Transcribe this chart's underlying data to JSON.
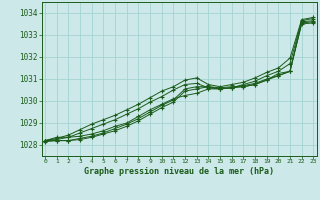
{
  "title": "Graphe pression niveau de la mer (hPa)",
  "bg_color": "#cce8e8",
  "line_color": "#1a5c1a",
  "xlim": [
    -0.3,
    23.3
  ],
  "ylim": [
    1027.5,
    1034.5
  ],
  "xticks": [
    0,
    1,
    2,
    3,
    4,
    5,
    6,
    7,
    8,
    9,
    10,
    11,
    12,
    13,
    14,
    15,
    16,
    17,
    18,
    19,
    20,
    21,
    22,
    23
  ],
  "yticks": [
    1028,
    1029,
    1030,
    1031,
    1032,
    1033,
    1034
  ],
  "series": [
    [
      1028.15,
      1028.2,
      1028.2,
      1028.25,
      1028.35,
      1028.5,
      1028.65,
      1028.85,
      1029.1,
      1029.4,
      1029.7,
      1029.95,
      1030.45,
      1030.55,
      1030.65,
      1030.6,
      1030.65,
      1030.65,
      1030.75,
      1030.95,
      1031.15,
      1031.35,
      1033.55,
      1033.6
    ],
    [
      1028.2,
      1028.2,
      1028.2,
      1028.3,
      1028.4,
      1028.55,
      1028.75,
      1028.95,
      1029.2,
      1029.5,
      1029.8,
      1030.05,
      1030.55,
      1030.65,
      1030.65,
      1030.55,
      1030.6,
      1030.7,
      1030.8,
      1031.0,
      1031.15,
      1031.35,
      1033.6,
      1033.65
    ],
    [
      1028.2,
      1028.25,
      1028.35,
      1028.55,
      1028.75,
      1028.95,
      1029.15,
      1029.4,
      1029.65,
      1029.95,
      1030.2,
      1030.5,
      1030.75,
      1030.8,
      1030.6,
      1030.55,
      1030.6,
      1030.75,
      1030.9,
      1031.15,
      1031.35,
      1031.7,
      1033.65,
      1033.75
    ],
    [
      1028.2,
      1028.3,
      1028.45,
      1028.7,
      1028.95,
      1029.15,
      1029.35,
      1029.6,
      1029.85,
      1030.15,
      1030.45,
      1030.65,
      1030.95,
      1031.05,
      1030.75,
      1030.65,
      1030.75,
      1030.85,
      1031.05,
      1031.3,
      1031.5,
      1031.95,
      1033.7,
      1033.8
    ],
    [
      1028.2,
      1028.35,
      1028.35,
      1028.4,
      1028.5,
      1028.65,
      1028.85,
      1029.0,
      1029.3,
      1029.6,
      1029.85,
      1030.1,
      1030.25,
      1030.35,
      1030.55,
      1030.55,
      1030.6,
      1030.65,
      1030.75,
      1030.95,
      1031.25,
      1031.35,
      1033.5,
      1033.55
    ]
  ]
}
